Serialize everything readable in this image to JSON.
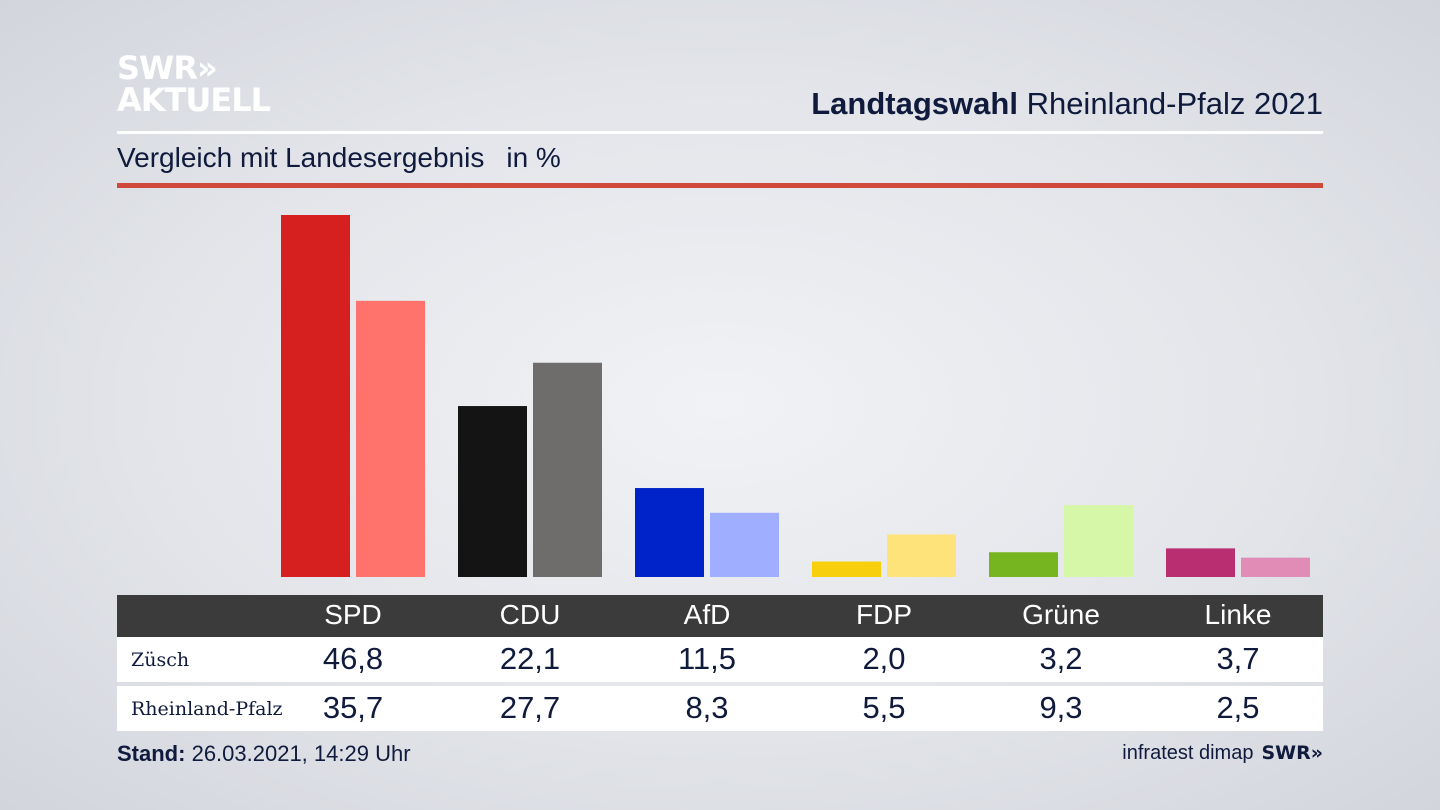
{
  "logo": {
    "line1": "SWR»",
    "line2": "AKTUELL"
  },
  "header": {
    "title_bold": "Landtagswahl",
    "title_regular": "Rheinland-Pfalz 2021"
  },
  "subtitle": {
    "text": "Vergleich mit Landesergebnis",
    "unit": "in %"
  },
  "colors": {
    "accent_line": "#cf4a3b",
    "table_header": "#3b3b3b",
    "text": "#0f1a3c"
  },
  "chart_data": {
    "type": "bar",
    "categories": [
      "SPD",
      "CDU",
      "AfD",
      "FDP",
      "Grüne",
      "Linke"
    ],
    "series": [
      {
        "name": "Züsch",
        "values": [
          46.8,
          22.1,
          11.5,
          2.0,
          3.2,
          3.7
        ],
        "colors": [
          "#d62020",
          "#141414",
          "#0022c9",
          "#f7cf0c",
          "#77b520",
          "#b92e70"
        ]
      },
      {
        "name": "Rheinland-Pfalz",
        "values": [
          35.7,
          27.7,
          8.3,
          5.5,
          9.3,
          2.5
        ],
        "colors": [
          "#ff736c",
          "#6f6d6b",
          "#a0aeff",
          "#fde37a",
          "#d6f7a8",
          "#e08cb6"
        ]
      }
    ],
    "ylim": [
      0,
      46.8
    ],
    "grid": false
  },
  "table": {
    "rows": [
      {
        "label": "Züsch",
        "values": [
          "46,8",
          "22,1",
          "11,5",
          "2,0",
          "3,2",
          "3,7"
        ]
      },
      {
        "label": "Rheinland-Pfalz",
        "values": [
          "35,7",
          "27,7",
          "8,3",
          "5,5",
          "9,3",
          "2,5"
        ]
      }
    ]
  },
  "footer": {
    "stand_label": "Stand:",
    "stand_value": "26.03.2021, 14:29 Uhr",
    "source": "infratest dimap",
    "source_logo": "SWR»"
  }
}
